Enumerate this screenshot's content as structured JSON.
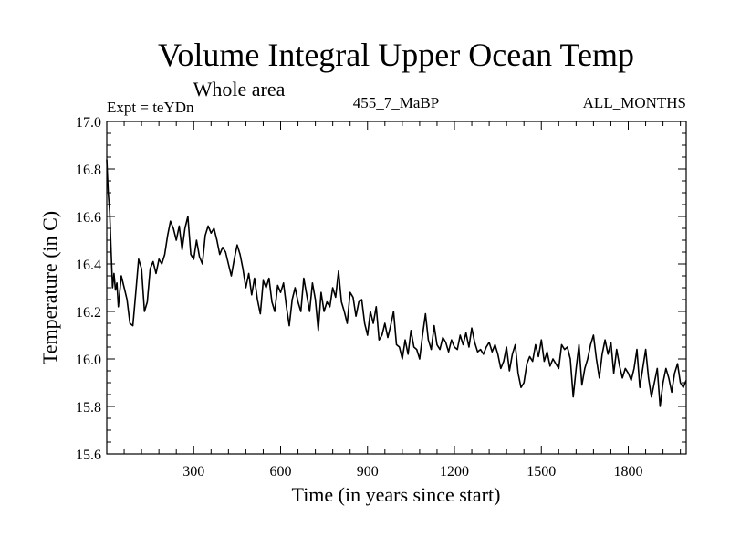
{
  "chart_data": {
    "type": "line",
    "title": "Volume Integral Upper Ocean Temp",
    "subtitle": "Whole area",
    "annotations": {
      "left": "Expt = teYDn",
      "center": "455_7_MaBP",
      "right": "ALL_MONTHS"
    },
    "xlabel": "Time (in years since start)",
    "ylabel": "Temperature (in C)",
    "xlim": [
      0,
      2000
    ],
    "ylim": [
      15.6,
      17.0
    ],
    "x_ticks": [
      300,
      600,
      900,
      1200,
      1500,
      1800
    ],
    "x_tick_labels": [
      "300",
      "600",
      "900",
      "1200",
      "1500",
      "1800"
    ],
    "y_ticks": [
      15.6,
      15.8,
      16.0,
      16.2,
      16.4,
      16.6,
      16.8,
      17.0
    ],
    "y_tick_labels": [
      "15.6",
      "15.8",
      "16.0",
      "16.2",
      "16.4",
      "16.6",
      "16.8",
      "17.0"
    ],
    "grid": false,
    "series": [
      {
        "name": "Volume Integral Upper Ocean Temp",
        "color": "#000000",
        "x": [
          0,
          5,
          10,
          15,
          20,
          25,
          30,
          35,
          40,
          50,
          60,
          70,
          80,
          90,
          100,
          110,
          120,
          130,
          140,
          150,
          160,
          170,
          180,
          190,
          200,
          210,
          220,
          230,
          240,
          250,
          260,
          270,
          280,
          290,
          300,
          310,
          320,
          330,
          340,
          350,
          360,
          370,
          380,
          390,
          400,
          410,
          420,
          430,
          440,
          450,
          460,
          470,
          480,
          490,
          500,
          510,
          520,
          530,
          540,
          550,
          560,
          570,
          580,
          590,
          600,
          610,
          620,
          630,
          640,
          650,
          660,
          670,
          680,
          690,
          700,
          710,
          720,
          730,
          740,
          750,
          760,
          770,
          780,
          790,
          800,
          810,
          820,
          830,
          840,
          850,
          860,
          870,
          880,
          890,
          900,
          910,
          920,
          930,
          940,
          950,
          960,
          970,
          980,
          990,
          1000,
          1010,
          1020,
          1030,
          1040,
          1050,
          1060,
          1070,
          1080,
          1090,
          1100,
          1110,
          1120,
          1130,
          1140,
          1150,
          1160,
          1170,
          1180,
          1190,
          1200,
          1210,
          1220,
          1230,
          1240,
          1250,
          1260,
          1270,
          1280,
          1290,
          1300,
          1310,
          1320,
          1330,
          1340,
          1350,
          1360,
          1370,
          1380,
          1390,
          1400,
          1410,
          1420,
          1430,
          1440,
          1450,
          1460,
          1470,
          1480,
          1490,
          1500,
          1510,
          1520,
          1530,
          1540,
          1550,
          1560,
          1570,
          1580,
          1590,
          1600,
          1610,
          1620,
          1630,
          1640,
          1650,
          1660,
          1670,
          1680,
          1690,
          1700,
          1710,
          1720,
          1730,
          1740,
          1750,
          1760,
          1770,
          1780,
          1790,
          1800,
          1810,
          1820,
          1830,
          1840,
          1850,
          1860,
          1870,
          1880,
          1890,
          1900,
          1910,
          1920,
          1930,
          1940,
          1950,
          1960,
          1970,
          1980,
          1990,
          2000
        ],
        "values": [
          16.84,
          16.7,
          16.62,
          16.45,
          16.3,
          16.36,
          16.29,
          16.32,
          16.22,
          16.35,
          16.3,
          16.25,
          16.15,
          16.14,
          16.28,
          16.42,
          16.38,
          16.2,
          16.24,
          16.38,
          16.41,
          16.36,
          16.42,
          16.4,
          16.44,
          16.52,
          16.58,
          16.55,
          16.5,
          16.56,
          16.46,
          16.55,
          16.6,
          16.44,
          16.42,
          16.5,
          16.43,
          16.4,
          16.52,
          16.56,
          16.53,
          16.55,
          16.5,
          16.44,
          16.47,
          16.45,
          16.4,
          16.35,
          16.42,
          16.48,
          16.44,
          16.38,
          16.3,
          16.36,
          16.27,
          16.34,
          16.25,
          16.19,
          16.33,
          16.3,
          16.34,
          16.24,
          16.2,
          16.31,
          16.28,
          16.32,
          16.22,
          16.14,
          16.25,
          16.3,
          16.24,
          16.2,
          16.34,
          16.27,
          16.2,
          16.32,
          16.25,
          16.12,
          16.28,
          16.2,
          16.24,
          16.22,
          16.3,
          16.26,
          16.37,
          16.24,
          16.2,
          16.15,
          16.28,
          16.26,
          16.18,
          16.24,
          16.25,
          16.15,
          16.1,
          16.2,
          16.15,
          16.22,
          16.08,
          16.1,
          16.15,
          16.09,
          16.14,
          16.2,
          16.06,
          16.05,
          16.0,
          16.08,
          16.02,
          16.12,
          16.05,
          16.04,
          16.0,
          16.1,
          16.19,
          16.08,
          16.04,
          16.14,
          16.06,
          16.04,
          16.09,
          16.07,
          16.03,
          16.08,
          16.05,
          16.04,
          16.1,
          16.06,
          16.11,
          16.05,
          16.13,
          16.07,
          16.03,
          16.04,
          16.02,
          16.05,
          16.07,
          16.03,
          16.06,
          16.02,
          15.96,
          15.99,
          16.05,
          15.95,
          16.02,
          16.06,
          15.94,
          15.88,
          15.9,
          15.98,
          16.01,
          15.99,
          16.06,
          16.01,
          16.08,
          15.99,
          16.03,
          15.97,
          16.0,
          15.98,
          15.96,
          16.06,
          16.04,
          16.05,
          16.0,
          15.84,
          15.96,
          16.06,
          15.89,
          15.96,
          16.0,
          16.06,
          16.1,
          16.0,
          15.92,
          16.02,
          16.08,
          16.02,
          16.07,
          15.94,
          16.04,
          15.97,
          15.92,
          15.96,
          15.94,
          15.91,
          15.96,
          16.04,
          15.88,
          15.96,
          16.04,
          15.92,
          15.84,
          15.9,
          15.96,
          15.8,
          15.9,
          15.96,
          15.92,
          15.86,
          15.94,
          15.98,
          15.9,
          15.88,
          15.91
        ]
      }
    ]
  }
}
